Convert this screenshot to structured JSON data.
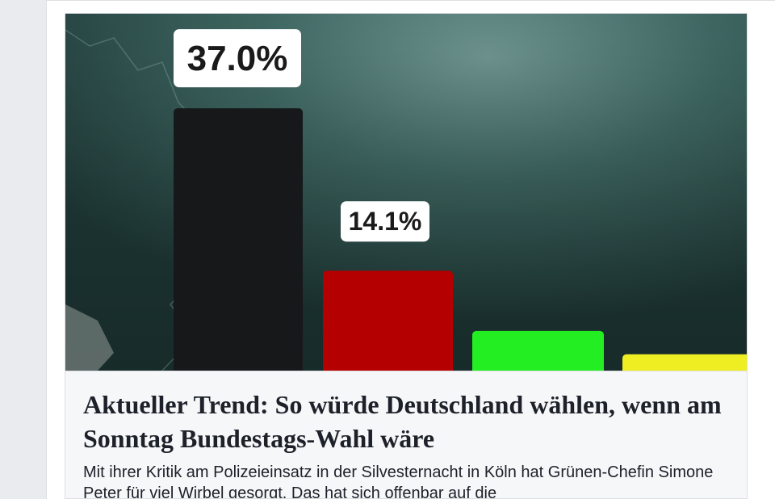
{
  "link_preview": {
    "headline": "Aktueller Trend: So würde Deutschland wählen, wenn am Sonntag Bundestags-Wahl wäre",
    "description": "Mit ihrer Kritik am Polizeieinsatz in der Silvesternacht in Köln hat Grünen-Chefin Simone Peter für viel Wirbel gesorgt. Das hat sich offenbar auf die"
  },
  "chart_data": {
    "type": "bar",
    "title": "",
    "xlabel": "",
    "ylabel": "",
    "ylim": [
      0,
      40
    ],
    "values": [
      37.0,
      14.1,
      5.6,
      2.3
    ],
    "data_labels": [
      "37.0%",
      "14.1%",
      "",
      ""
    ],
    "colors": [
      "#17181a",
      "#b40000",
      "#22ee22",
      "#eeee22"
    ]
  },
  "colors": {
    "page_background": "#e9ebee",
    "card_background": "#ffffff",
    "preview_text_background": "#f6f7f9",
    "label_background": "#ffffff",
    "label_text": "#1a1a1a"
  }
}
